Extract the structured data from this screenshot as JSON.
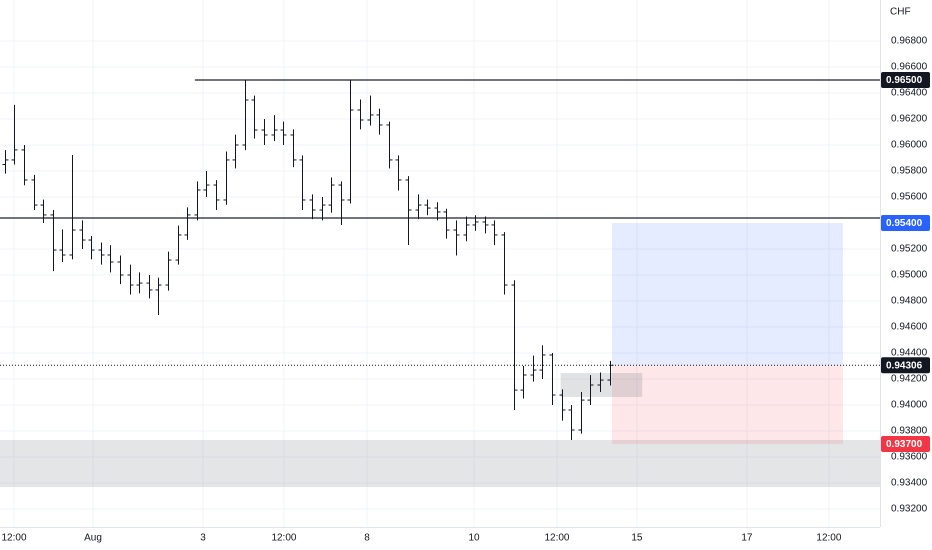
{
  "chart_data": {
    "type": "ohlc",
    "currency": "CHF",
    "color": "#131722",
    "grid": true,
    "xlim": [
      -0.5,
      91.17
    ],
    "ylim": [
      0.93062,
      0.97115
    ],
    "x": [
      0,
      1,
      2,
      3,
      4,
      5,
      6,
      7,
      8,
      9,
      10,
      11,
      12,
      13,
      14,
      15,
      16,
      17,
      18,
      19,
      20,
      21,
      22,
      23,
      24,
      25,
      26,
      27,
      28,
      29,
      30,
      31,
      32,
      33,
      34,
      35,
      36,
      37,
      38,
      39,
      40,
      41,
      42,
      43,
      44,
      45,
      46,
      47,
      48,
      49,
      50,
      51,
      52,
      53,
      54,
      55,
      56,
      57,
      58,
      59,
      60,
      61,
      62,
      63
    ],
    "open": [
      0.9585,
      0.95885,
      0.95962,
      0.95731,
      0.95538,
      0.95462,
      0.95192,
      0.95154,
      0.95346,
      0.95269,
      0.95192,
      0.95154,
      0.951,
      0.95,
      0.94923,
      0.94938,
      0.94885,
      0.94923,
      0.95115,
      0.95308,
      0.95462,
      0.95654,
      0.95692,
      0.95577,
      0.95885,
      0.96,
      0.96346,
      0.96115,
      0.96077,
      0.96115,
      0.96077,
      0.95885,
      0.95577,
      0.955,
      0.95538,
      0.95692,
      0.95577,
      0.96269,
      0.96192,
      0.96231,
      0.96154,
      0.95885,
      0.95731,
      0.955,
      0.95538,
      0.95515,
      0.95485,
      0.95346,
      0.95308,
      0.95385,
      0.95408,
      0.95385,
      0.95308,
      0.94923,
      0.94115,
      0.94231,
      0.94269,
      0.94385,
      0.94077,
      0.93962,
      0.93808,
      0.94038,
      0.94154,
      0.94192
    ],
    "high": [
      0.9596,
      0.96308,
      0.96,
      0.9577,
      0.9558,
      0.955,
      0.9535,
      0.95923,
      0.9542,
      0.953,
      0.9525,
      0.9523,
      0.9515,
      0.9508,
      0.9502,
      0.95,
      0.9498,
      0.9518,
      0.9538,
      0.9552,
      0.9572,
      0.958,
      0.9573,
      0.9595,
      0.9608,
      0.965,
      0.9638,
      0.962,
      0.9623,
      0.9618,
      0.9612,
      0.9592,
      0.9562,
      0.956,
      0.9575,
      0.9572,
      0.965,
      0.9635,
      0.9638,
      0.9628,
      0.9618,
      0.9592,
      0.9576,
      0.9562,
      0.9558,
      0.9556,
      0.9551,
      0.9542,
      0.9545,
      0.9546,
      0.9545,
      0.9542,
      0.9533,
      0.9496,
      0.943,
      0.9438,
      0.9446,
      0.944,
      0.9412,
      0.94,
      0.941,
      0.9423,
      0.9425,
      0.9434
    ],
    "low": [
      0.9578,
      0.9585,
      0.9569,
      0.955,
      0.954,
      0.9503,
      0.951,
      0.9512,
      0.952,
      0.9512,
      0.9508,
      0.9502,
      0.9493,
      0.9485,
      0.9486,
      0.9482,
      0.94692,
      0.9488,
      0.9508,
      0.9527,
      0.9542,
      0.956,
      0.955,
      0.9554,
      0.9582,
      0.9596,
      0.9605,
      0.96,
      0.9603,
      0.96,
      0.9583,
      0.955,
      0.9543,
      0.9542,
      0.9548,
      0.95385,
      0.9555,
      0.9612,
      0.9615,
      0.9608,
      0.9582,
      0.9565,
      0.95231,
      0.9543,
      0.9546,
      0.9542,
      0.9528,
      0.9515,
      0.9526,
      0.9534,
      0.9532,
      0.9523,
      0.9485,
      0.93962,
      0.9405,
      0.9418,
      0.942,
      0.94,
      0.9388,
      0.93731,
      0.9378,
      0.94,
      0.941,
      0.9415
    ],
    "close": [
      0.95885,
      0.95962,
      0.95731,
      0.95538,
      0.95462,
      0.95192,
      0.95154,
      0.95346,
      0.95269,
      0.95192,
      0.95154,
      0.951,
      0.95,
      0.94923,
      0.94938,
      0.94885,
      0.94923,
      0.95115,
      0.95308,
      0.95462,
      0.95654,
      0.95692,
      0.95577,
      0.95885,
      0.96,
      0.96346,
      0.96115,
      0.96077,
      0.96115,
      0.96077,
      0.95885,
      0.95577,
      0.955,
      0.95538,
      0.95692,
      0.95577,
      0.96269,
      0.96192,
      0.96231,
      0.96154,
      0.95885,
      0.95731,
      0.955,
      0.95538,
      0.95515,
      0.95485,
      0.95346,
      0.95308,
      0.95385,
      0.95408,
      0.95385,
      0.95308,
      0.94923,
      0.94115,
      0.94231,
      0.94269,
      0.94385,
      0.94077,
      0.93962,
      0.93808,
      0.94038,
      0.94154,
      0.94192,
      0.94306
    ],
    "xticks": [
      {
        "value": 0.96,
        "label": "12:00"
      },
      {
        "value": 9.19,
        "label": "Aug"
      },
      {
        "value": 20.65,
        "label": "3"
      },
      {
        "value": 29.08,
        "label": "12:00"
      },
      {
        "value": 37.73,
        "label": "8"
      },
      {
        "value": 48.88,
        "label": "10"
      },
      {
        "value": 57.52,
        "label": "12:00"
      },
      {
        "value": 65.85,
        "label": "15"
      },
      {
        "value": 77.31,
        "label": "17"
      },
      {
        "value": 85.85,
        "label": "12:00"
      }
    ],
    "yticks": [
      {
        "value": 0.968,
        "label": "0.96800"
      },
      {
        "value": 0.966,
        "label": "0.96600"
      },
      {
        "value": 0.964,
        "label": "0.96400"
      },
      {
        "value": 0.962,
        "label": "0.96200"
      },
      {
        "value": 0.96,
        "label": "0.96000"
      },
      {
        "value": 0.958,
        "label": "0.95800"
      },
      {
        "value": 0.956,
        "label": "0.95600"
      },
      {
        "value": 0.952,
        "label": "0.95200"
      },
      {
        "value": 0.95,
        "label": "0.95000"
      },
      {
        "value": 0.948,
        "label": "0.94800"
      },
      {
        "value": 0.946,
        "label": "0.94600"
      },
      {
        "value": 0.944,
        "label": "0.94400"
      },
      {
        "value": 0.942,
        "label": "0.94200"
      },
      {
        "value": 0.94,
        "label": "0.94000"
      },
      {
        "value": 0.938,
        "label": "0.93800"
      },
      {
        "value": 0.936,
        "label": "0.93600"
      },
      {
        "value": 0.934,
        "label": "0.93400"
      },
      {
        "value": 0.932,
        "label": "0.93200"
      }
    ],
    "zone": {
      "low": 0.93369,
      "high": 0.93731,
      "color": "rgba(120,123,134,0.2)"
    },
    "lines": [
      {
        "value": 0.965,
        "x0": 19.8,
        "color": "#434651"
      },
      {
        "value": 0.95438,
        "x0": -0.5,
        "color": "#434651"
      }
    ],
    "position": {
      "x": [
        63.25,
        87.31
      ],
      "entry": 0.94306,
      "target": 0.954,
      "stop": 0.937,
      "profit_color": "rgba(41,98,255,0.12)",
      "loss_color": "rgba(242,54,69,0.12)"
    },
    "box": {
      "x": [
        57.9,
        66.4
      ],
      "y": [
        0.94062,
        0.94246
      ],
      "color": "rgba(120,123,134,0.22)"
    },
    "price_labels": [
      {
        "value": 0.965,
        "label": "0.96500",
        "color": "#131722"
      },
      {
        "value": 0.954,
        "label": "0.95400",
        "color": "#2962ff"
      },
      {
        "value": 0.94306,
        "label": "0.94306",
        "color": "#131722"
      },
      {
        "value": 0.937,
        "label": "0.93700",
        "color": "#f23645"
      }
    ]
  }
}
